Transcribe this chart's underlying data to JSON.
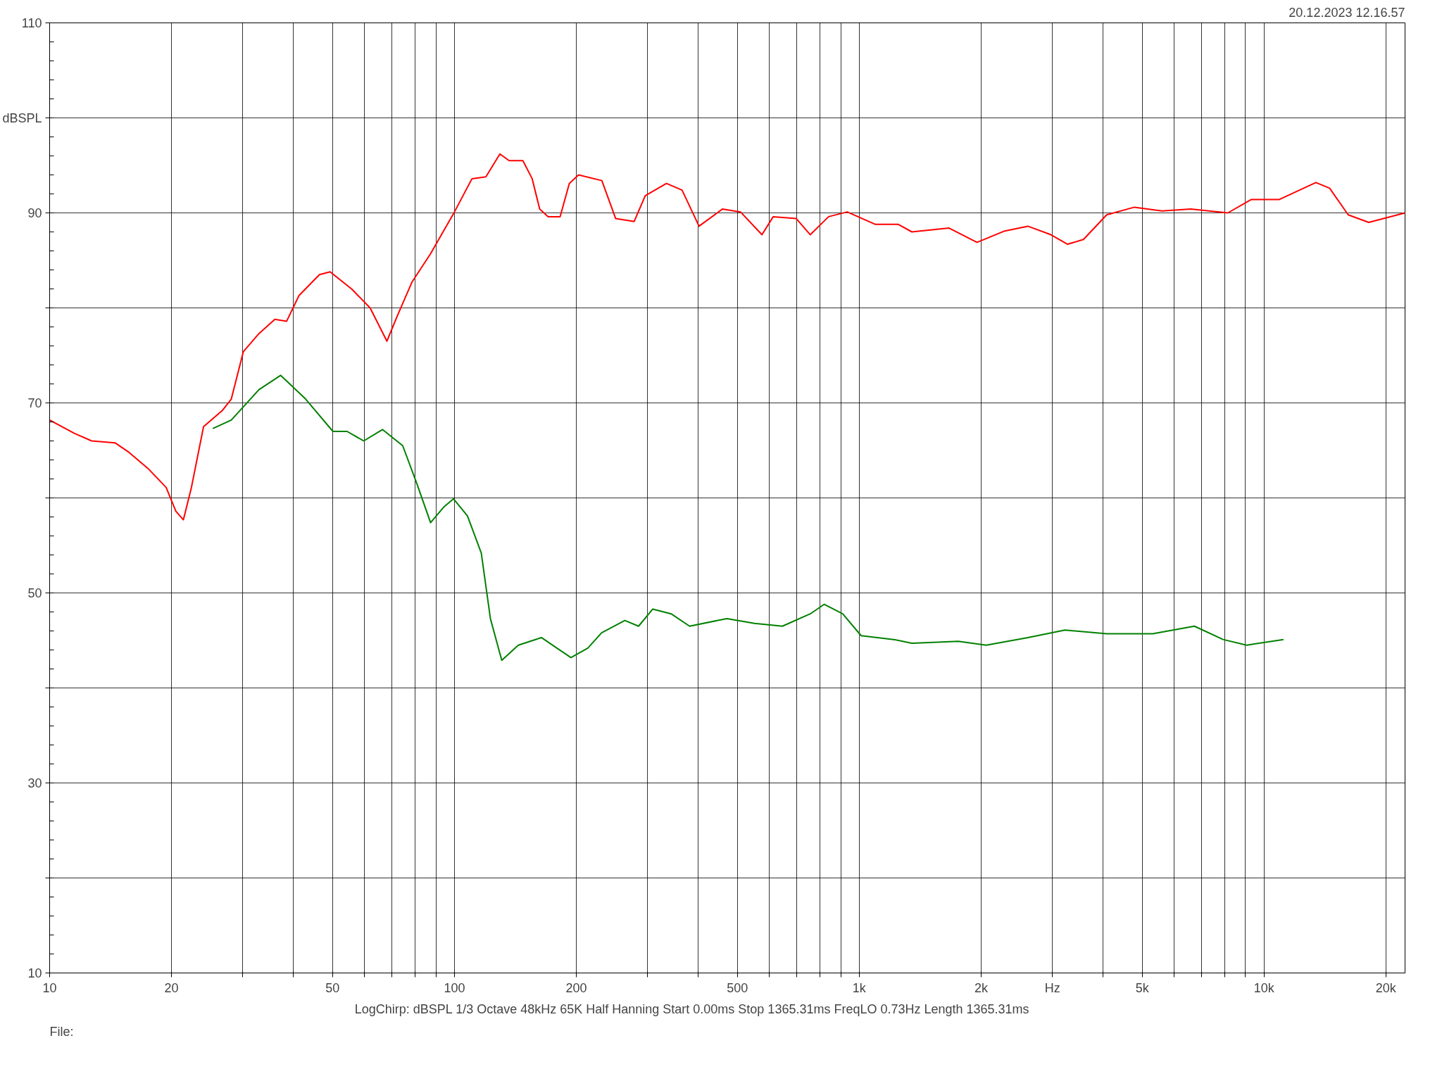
{
  "chart_data": {
    "type": "line",
    "subtitle": "20.12.2023 12.16.57",
    "annotations": [
      "LogChirp:  dBSPL   1/3 Octave   48kHz   65K   Half Hanning   Start 0.00ms    Stop 1365.31ms    FreqLO 0.73Hz    Length 1365.31ms",
      "File:"
    ],
    "log": "x",
    "grid": true,
    "line_style": "solid",
    "xlim": [
      10,
      22300
    ],
    "ylim": [
      10,
      110
    ],
    "xticks": [
      10,
      20,
      {
        "value": 30,
        "label": null
      },
      {
        "value": 40,
        "label": null
      },
      50,
      {
        "value": 60,
        "label": null
      },
      {
        "value": 70,
        "label": null
      },
      {
        "value": 80,
        "label": null
      },
      {
        "value": 90,
        "label": null
      },
      100,
      200,
      {
        "value": 300,
        "label": null
      },
      {
        "value": 400,
        "label": null
      },
      500,
      {
        "value": 600,
        "label": null
      },
      {
        "value": 700,
        "label": null
      },
      {
        "value": 800,
        "label": null
      },
      {
        "value": 900,
        "label": null
      },
      {
        "value": 1000,
        "label": "1k"
      },
      {
        "value": 2000,
        "label": "2k"
      },
      {
        "value": 3000,
        "label": "Hz"
      },
      {
        "value": 4000,
        "label": null
      },
      {
        "value": 5000,
        "label": "5k"
      },
      {
        "value": 6000,
        "label": null
      },
      {
        "value": 7000,
        "label": null
      },
      {
        "value": 8000,
        "label": null
      },
      {
        "value": 9000,
        "label": null
      },
      {
        "value": 10000,
        "label": "10k"
      },
      {
        "value": 20000,
        "label": "20k"
      }
    ],
    "yticks": [
      10,
      {
        "value": 20,
        "label": null
      },
      30,
      {
        "value": 40,
        "label": null
      },
      50,
      {
        "value": 60,
        "label": null
      },
      70,
      {
        "value": 80,
        "label": null
      },
      90,
      {
        "value": 100,
        "label": "dBSPL"
      },
      110
    ],
    "series": [
      {
        "color": "#ff0000",
        "x": [
          10,
          11.5,
          12.7,
          14.5,
          15.7,
          17.5,
          19.4,
          20.5,
          21.4,
          22.4,
          24.0,
          26.7,
          28.1,
          30.1,
          32.9,
          36.0,
          38.5,
          41.3,
          46.4,
          49.3,
          55.7,
          61.9,
          68.1,
          72.5,
          78.5,
          87.3,
          100,
          110.5,
          119.6,
          129.5,
          136.5,
          147.6,
          155.6,
          162.4,
          170.4,
          182.4,
          192.2,
          202.6,
          231.3,
          250.2,
          278,
          296,
          334,
          365,
          402,
          459,
          509,
          575,
          613,
          699,
          757,
          840,
          934,
          1094,
          1247,
          1349,
          1667,
          1954,
          2288,
          2609,
          2976,
          3272,
          3580,
          4086,
          4784,
          5600,
          6590,
          8140,
          9290,
          10890,
          13430,
          14520,
          16140,
          18140,
          22300
        ],
        "values": [
          68.2,
          66.8,
          66.0,
          65.8,
          64.8,
          63.1,
          61.1,
          58.6,
          57.7,
          61.1,
          67.5,
          69.2,
          70.4,
          75.4,
          77.3,
          78.8,
          78.6,
          81.3,
          83.5,
          83.8,
          82.0,
          80.0,
          76.5,
          79.3,
          82.7,
          85.7,
          90.1,
          93.6,
          93.8,
          96.2,
          95.5,
          95.5,
          93.6,
          90.4,
          89.6,
          89.6,
          93.1,
          94.0,
          93.4,
          89.4,
          89.1,
          91.8,
          93.1,
          92.4,
          88.6,
          90.4,
          90.1,
          87.7,
          89.6,
          89.4,
          87.7,
          89.6,
          90.1,
          88.8,
          88.8,
          88.0,
          88.4,
          86.9,
          88.1,
          88.6,
          87.7,
          86.7,
          87.2,
          89.8,
          90.6,
          90.2,
          90.4,
          90.0,
          91.4,
          91.4,
          93.2,
          92.6,
          89.8,
          89.0,
          90.0
        ]
      },
      {
        "color": "#008000",
        "x": [
          25.3,
          28.1,
          32.9,
          37.2,
          42.9,
          50.1,
          54.3,
          59.7,
          66.4,
          74.5,
          80.6,
          87.3,
          94.4,
          99.5,
          107.7,
          116.5,
          122.7,
          130.9,
          143.8,
          164,
          177.5,
          194,
          213.6,
          231,
          263.6,
          285,
          309,
          343,
          381,
          471,
          551,
          646,
          757,
          819,
          910,
          1011,
          1216,
          1349,
          1757,
          2059,
          2609,
          3222,
          4086,
          5309,
          6730,
          7920,
          9060,
          11170
        ],
        "values": [
          67.3,
          68.2,
          71.4,
          72.9,
          70.4,
          67.0,
          67.0,
          66.0,
          67.2,
          65.5,
          61.6,
          57.4,
          59.1,
          59.9,
          58.1,
          54.2,
          47.3,
          42.9,
          44.5,
          45.3,
          44.3,
          43.2,
          44.2,
          45.8,
          47.1,
          46.5,
          48.3,
          47.8,
          46.5,
          47.3,
          46.8,
          46.5,
          47.8,
          48.8,
          47.8,
          45.5,
          45.1,
          44.7,
          44.9,
          44.5,
          45.3,
          46.1,
          45.7,
          45.7,
          46.5,
          45.1,
          44.5,
          45.1
        ]
      }
    ]
  }
}
